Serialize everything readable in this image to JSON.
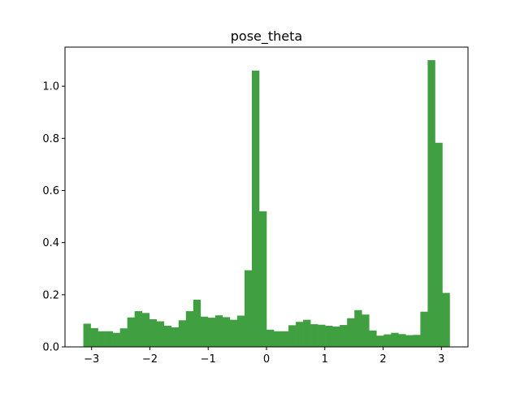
{
  "chart_data": {
    "type": "bar",
    "title": "pose_theta",
    "xlabel": "",
    "ylabel": "",
    "xlim": [
      -3.456,
      3.456
    ],
    "ylim": [
      0,
      1.15
    ],
    "xticks": [
      {
        "value": -3,
        "label": "−3"
      },
      {
        "value": -2,
        "label": "−2"
      },
      {
        "value": -1,
        "label": "−1"
      },
      {
        "value": 0,
        "label": "0"
      },
      {
        "value": 1,
        "label": "1"
      },
      {
        "value": 2,
        "label": "2"
      },
      {
        "value": 3,
        "label": "3"
      }
    ],
    "yticks": [
      {
        "value": 0,
        "label": "0.0"
      },
      {
        "value": 0.2,
        "label": "0.2"
      },
      {
        "value": 0.4,
        "label": "0.4"
      },
      {
        "value": 0.6,
        "label": "0.6"
      },
      {
        "value": 0.8,
        "label": "0.8"
      },
      {
        "value": 1.0,
        "label": "1.0"
      }
    ],
    "grid": false,
    "bar_color": "#409f40",
    "bins": {
      "start": -3.1416,
      "end": 3.1416,
      "count": 50
    },
    "values": [
      0.089,
      0.072,
      0.06,
      0.06,
      0.054,
      0.071,
      0.113,
      0.137,
      0.13,
      0.106,
      0.098,
      0.081,
      0.075,
      0.102,
      0.137,
      0.181,
      0.116,
      0.112,
      0.121,
      0.114,
      0.104,
      0.12,
      0.294,
      1.06,
      0.52,
      0.066,
      0.06,
      0.06,
      0.083,
      0.096,
      0.104,
      0.087,
      0.085,
      0.081,
      0.078,
      0.084,
      0.11,
      0.141,
      0.124,
      0.063,
      0.043,
      0.048,
      0.054,
      0.049,
      0.045,
      0.046,
      0.135,
      1.1,
      0.783,
      0.207
    ]
  }
}
